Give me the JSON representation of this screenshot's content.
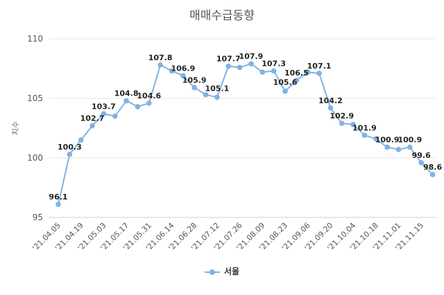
{
  "chart_data": {
    "type": "line",
    "title": "매매수급동향",
    "ylabel": "지수",
    "xlabel": "",
    "ylim": [
      95,
      110
    ],
    "yticks": [
      95,
      100,
      105,
      110
    ],
    "grid": true,
    "legend_position": "bottom",
    "color": "#7fb2e5",
    "x_tick_labels": [
      "'21.04.05",
      "'21.04.19",
      "'21.05.03",
      "'21.05.17",
      "'21.05.31",
      "'21.06.14",
      "'21.06.28",
      "'21.07.12",
      "'21.07.26",
      "'21.08.09",
      "'21.08.23",
      "'21.09.06",
      "'21.09.20",
      "'21.10.04",
      "'21.10.18",
      "'21.11.01",
      "'21.11.15"
    ],
    "series": [
      {
        "name": "서울",
        "values": [
          96.1,
          100.3,
          101.5,
          102.7,
          103.7,
          103.5,
          104.8,
          104.3,
          104.6,
          107.8,
          107.3,
          106.9,
          105.9,
          105.3,
          105.1,
          107.7,
          107.6,
          107.9,
          107.2,
          107.3,
          105.6,
          106.5,
          107.2,
          107.1,
          104.2,
          102.9,
          102.8,
          101.9,
          101.6,
          100.9,
          100.7,
          100.9,
          99.6,
          98.6
        ],
        "labels": [
          "96.1",
          "100.3",
          "",
          "102.7",
          "103.7",
          "",
          "104.8",
          "",
          "104.6",
          "107.8",
          "",
          "106.9",
          "105.9",
          "",
          "105.1",
          "107.7",
          "",
          "107.9",
          "",
          "107.3",
          "105.6",
          "106.5",
          "",
          "107.1",
          "104.2",
          "102.9",
          "",
          "101.9",
          "",
          "100.9",
          "",
          "100.9",
          "99.6",
          "98.6"
        ]
      }
    ]
  }
}
